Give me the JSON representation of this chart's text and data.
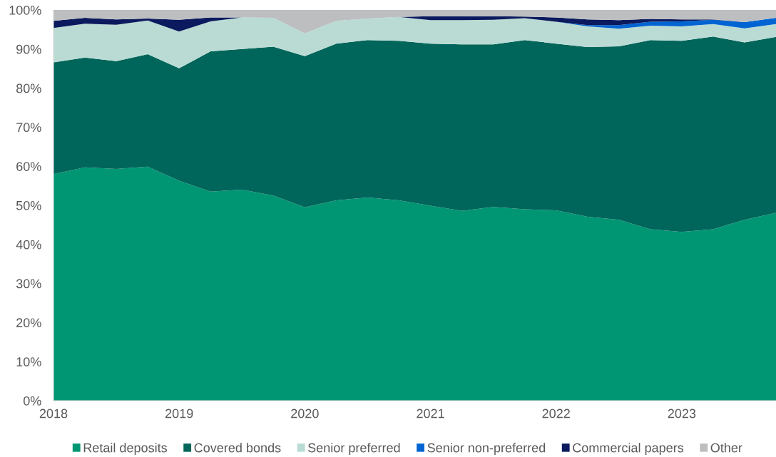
{
  "chart_data": {
    "type": "area",
    "stacked": true,
    "categories": [
      "2018",
      null,
      null,
      null,
      "2019",
      null,
      null,
      null,
      "2020",
      null,
      null,
      null,
      "2021",
      null,
      null,
      null,
      "2022",
      null,
      null,
      null,
      "2023",
      null,
      null,
      null
    ],
    "ylim": [
      0,
      100
    ],
    "yticks": [
      {
        "value": 0,
        "label": "0%"
      },
      {
        "value": 10,
        "label": "10%"
      },
      {
        "value": 20,
        "label": "20%"
      },
      {
        "value": 30,
        "label": "30%"
      },
      {
        "value": 40,
        "label": "40%"
      },
      {
        "value": 50,
        "label": "50%"
      },
      {
        "value": 60,
        "label": "60%"
      },
      {
        "value": 70,
        "label": "70%"
      },
      {
        "value": 80,
        "label": "80%"
      },
      {
        "value": 90,
        "label": "90%"
      },
      {
        "value": 100,
        "label": "100%"
      }
    ],
    "legend": "bottom",
    "series": [
      {
        "name": "Retail deposits",
        "color": "#009674",
        "values": [
          58.0,
          59.7,
          59.3,
          59.9,
          56.3,
          53.5,
          54.0,
          52.5,
          49.5,
          51.3,
          52.0,
          51.3,
          49.9,
          48.6,
          49.6,
          49.0,
          48.7,
          47.1,
          46.3,
          43.9,
          43.2,
          43.9,
          46.3,
          48.1
        ]
      },
      {
        "name": "Covered bonds",
        "color": "#00655a",
        "values": [
          28.6,
          28.1,
          27.6,
          28.8,
          28.8,
          35.9,
          36.0,
          38.1,
          38.7,
          40.1,
          40.3,
          40.8,
          41.5,
          42.6,
          41.6,
          43.3,
          42.7,
          43.4,
          44.4,
          48.4,
          48.9,
          49.3,
          45.4,
          45.0
        ]
      },
      {
        "name": "Senior preferred",
        "color": "#badbd4",
        "values": [
          8.8,
          8.7,
          9.3,
          8.6,
          9.4,
          7.7,
          8.1,
          7.4,
          5.8,
          5.8,
          5.5,
          6.1,
          6.0,
          6.2,
          6.3,
          5.6,
          5.6,
          5.3,
          4.5,
          3.7,
          3.7,
          3.2,
          3.6,
          3.3
        ]
      },
      {
        "name": "Senior non-preferred",
        "color": "#0064d2",
        "values": [
          0,
          0,
          0,
          0,
          0,
          0,
          0,
          0,
          0,
          0,
          0,
          0,
          0,
          0,
          0,
          0,
          0,
          0.3,
          0.9,
          1.0,
          1.3,
          1.1,
          1.6,
          1.6
        ]
      },
      {
        "name": "Commercial papers",
        "color": "#0b1a5e",
        "values": [
          1.8,
          1.5,
          1.4,
          0.5,
          3.0,
          1.0,
          0,
          0,
          0,
          0,
          0,
          0,
          1.0,
          1.0,
          0.9,
          0.4,
          1.1,
          1.5,
          1.3,
          0.7,
          0.5,
          0.1,
          0,
          0
        ]
      },
      {
        "name": "Other",
        "color": "#bcbec0",
        "values": [
          2.8,
          2.0,
          2.4,
          2.2,
          2.5,
          1.9,
          1.9,
          2.0,
          6.0,
          2.8,
          2.2,
          1.8,
          1.6,
          1.6,
          1.6,
          1.7,
          1.9,
          2.4,
          2.6,
          2.3,
          2.4,
          2.4,
          3.1,
          2.0
        ]
      }
    ]
  }
}
